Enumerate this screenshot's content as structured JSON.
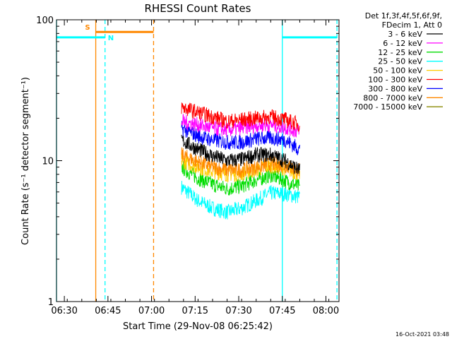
{
  "chart_data": {
    "type": "line",
    "title": "RHESSI Count Rates",
    "xlabel": "Start Time (29-Nov-08 06:25:42)",
    "ylabel": "Count Rate (s⁻¹ detector segment⁻¹)",
    "yscale": "log",
    "ylim": [
      1,
      100
    ],
    "xlim_minutes": [
      6.3,
      103.5
    ],
    "x_ticks": [
      {
        "label": "06:30",
        "minutes": 9
      },
      {
        "label": "06:45",
        "minutes": 24
      },
      {
        "label": "07:00",
        "minutes": 39
      },
      {
        "label": "07:15",
        "minutes": 54
      },
      {
        "label": "07:30",
        "minutes": 69
      },
      {
        "label": "07:45",
        "minutes": 84
      },
      {
        "label": "08:00",
        "minutes": 99
      }
    ],
    "y_ticks": [
      {
        "label": "1",
        "value": 1
      },
      {
        "label": "10",
        "value": 10
      },
      {
        "label": "100",
        "value": 100
      }
    ],
    "legend_header": [
      "Det 1f,3f,4f,5f,6f,9f,",
      "FDecim 1, Att 0"
    ],
    "legend_placement": "right",
    "series": [
      {
        "name": "3 - 6 keV",
        "color": "#000000",
        "x": [
          49.3,
          55,
          60,
          65,
          70,
          75,
          80,
          85,
          90
        ],
        "y": [
          14.0,
          12.0,
          10.8,
          10.0,
          10.2,
          11.0,
          11.0,
          10.0,
          8.5
        ]
      },
      {
        "name": "6 - 12 keV",
        "color": "#ff00ff",
        "x": [
          49.3,
          55,
          60,
          65,
          70,
          75,
          80,
          85,
          90
        ],
        "y": [
          19.0,
          18.0,
          17.0,
          16.5,
          17.0,
          17.8,
          18.0,
          17.2,
          16.0
        ]
      },
      {
        "name": "12 - 25 keV",
        "color": "#00dd00",
        "x": [
          49.3,
          55,
          60,
          65,
          70,
          75,
          80,
          85,
          90
        ],
        "y": [
          9.0,
          7.5,
          6.8,
          6.3,
          6.6,
          7.3,
          7.9,
          7.2,
          6.5
        ]
      },
      {
        "name": "25 - 50 keV",
        "color": "#00ffff",
        "x": [
          49.3,
          55,
          60,
          65,
          70,
          75,
          80,
          85,
          90
        ],
        "y": [
          6.5,
          5.2,
          4.6,
          4.3,
          4.6,
          5.2,
          5.9,
          5.8,
          5.5
        ]
      },
      {
        "name": "50 - 100 keV",
        "color": "#ffcc00",
        "x": [
          49.3,
          55,
          60,
          65,
          70,
          75,
          80,
          85,
          90
        ],
        "y": [
          10.0,
          9.0,
          8.4,
          8.0,
          8.1,
          8.6,
          9.2,
          8.8,
          8.0
        ]
      },
      {
        "name": "100 - 300 keV",
        "color": "#ff0000",
        "x": [
          49.3,
          55,
          60,
          65,
          70,
          75,
          80,
          85,
          90
        ],
        "y": [
          24.0,
          22.0,
          20.5,
          19.0,
          19.5,
          20.0,
          20.5,
          19.5,
          18.0
        ]
      },
      {
        "name": "300 - 800 keV",
        "color": "#0000ff",
        "x": [
          49.3,
          55,
          60,
          65,
          70,
          75,
          80,
          85,
          90
        ],
        "y": [
          17.0,
          15.0,
          14.0,
          13.5,
          13.5,
          14.3,
          14.5,
          14.0,
          12.0
        ]
      },
      {
        "name": "800 - 7000 keV",
        "color": "#ff8800",
        "x": [
          49.3,
          55,
          60,
          65,
          70,
          75,
          80,
          85,
          90
        ],
        "y": [
          11.0,
          9.8,
          9.0,
          8.6,
          8.6,
          9.0,
          9.5,
          9.2,
          8.5
        ]
      },
      {
        "name": "7000 - 15000 keV",
        "color": "#888800",
        "x": [],
        "y": []
      }
    ],
    "flags": [
      {
        "label": "S",
        "color": "#ff8800",
        "y_value": 82,
        "x_start": 19.8,
        "x_end": 39.7
      },
      {
        "label": "N",
        "color": "#00ffff",
        "y_value": 75,
        "x_start": 6.3,
        "x_end": 23.0
      },
      {
        "label": "",
        "color": "#00ffff",
        "y_value": 75,
        "x_start": 84.0,
        "x_end": 102.8
      }
    ],
    "vertical_markers": [
      {
        "minutes": 6.3,
        "color": "#00ffff",
        "style": "solid"
      },
      {
        "minutes": 19.8,
        "color": "#ff8800",
        "style": "solid"
      },
      {
        "minutes": 23.0,
        "color": "#00ffff",
        "style": "dashed"
      },
      {
        "minutes": 39.7,
        "color": "#ff8800",
        "style": "dashed"
      },
      {
        "minutes": 84.0,
        "color": "#00ffff",
        "style": "solid"
      },
      {
        "minutes": 102.8,
        "color": "#00ffff",
        "style": "dashed"
      }
    ],
    "timestamp": "16-Oct-2021 03:48"
  }
}
